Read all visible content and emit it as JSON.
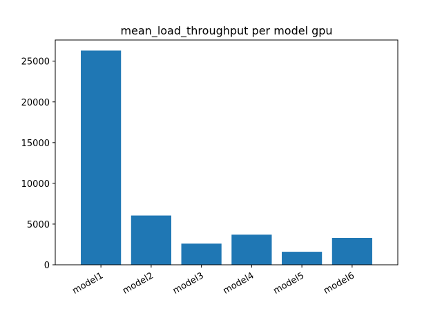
{
  "chart_data": {
    "type": "bar",
    "title": "mean_load_throughput per model gpu",
    "xlabel": "",
    "ylabel": "",
    "categories": [
      "model1",
      "model2",
      "model3",
      "model4",
      "model5",
      "model6"
    ],
    "values": [
      26300,
      6050,
      2600,
      3700,
      1600,
      3300
    ],
    "ylim": [
      0,
      27600
    ],
    "yticks": [
      0,
      5000,
      10000,
      15000,
      20000,
      25000
    ],
    "ytick_labels": [
      "0",
      "5000",
      "10000",
      "15000",
      "20000",
      "25000"
    ],
    "grid": false,
    "legend": "none",
    "bar_color": "#1f77b4"
  }
}
